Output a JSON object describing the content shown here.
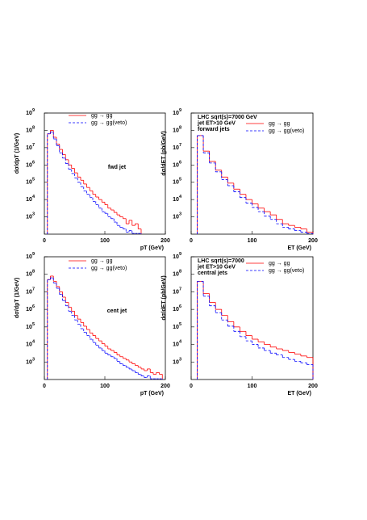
{
  "chart_data": [
    {
      "type": "histogram",
      "log_y": true,
      "grid": false,
      "x_label": "pT (GeV)",
      "y_label": "dσ/dpT (1/GeV)",
      "annotations": [
        "fwd jet"
      ],
      "xlim": [
        0,
        200
      ],
      "xticks": [
        0,
        100,
        200
      ],
      "ylim": [
        100,
        1000000000
      ],
      "yticks": [
        {
          "value": 1000,
          "label": "10",
          "exp": "3"
        },
        {
          "value": 10000,
          "label": "10",
          "exp": "4"
        },
        {
          "value": 100000,
          "label": "10",
          "exp": "5"
        },
        {
          "value": 1000000,
          "label": "10",
          "exp": "6"
        },
        {
          "value": 10000000,
          "label": "10",
          "exp": "7"
        },
        {
          "value": 100000000,
          "label": "10",
          "exp": "8"
        },
        {
          "value": 1000000000,
          "label": "10",
          "exp": "9"
        }
      ],
      "bins": [
        5,
        10,
        15,
        20,
        25,
        30,
        35,
        40,
        45,
        50,
        55,
        60,
        65,
        70,
        75,
        80,
        85,
        90,
        95,
        100,
        105,
        110,
        115,
        120,
        125,
        130,
        135,
        140,
        145,
        150,
        155,
        160
      ],
      "series": [
        {
          "name": "gg → gg",
          "color": "#ff0000",
          "line_style": "solid",
          "values": [
            63000000,
            100000000,
            40000000,
            16000000,
            7900000,
            4000000,
            2000000,
            1000000,
            630000,
            350000,
            200000,
            130000,
            79000,
            50000,
            32000,
            20000,
            14000,
            10000,
            7100,
            5000,
            3200,
            2500,
            1800,
            1300,
            1000,
            790,
            400,
            630,
            320,
            400,
            200
          ]
        },
        {
          "name": "gg → gg(veto)",
          "color": "#0000ff",
          "line_style": "dashed",
          "values": [
            63000000,
            79000000,
            32000000,
            13000000,
            5000000,
            2500000,
            1200000,
            560000,
            320000,
            180000,
            100000,
            56000,
            32000,
            20000,
            13000,
            7900,
            5000,
            3200,
            2000,
            1600,
            1000,
            790,
            500,
            320,
            250,
            200,
            130,
            160,
            110,
            110,
            110
          ]
        }
      ]
    },
    {
      "type": "histogram",
      "log_y": true,
      "grid": false,
      "x_label": "ET (GeV)",
      "y_label": "dσ/dET (pb/GeV)",
      "annotations": [
        "LHC sqrt(s)=7000 GeV",
        "jet  ET>10 GeV",
        "forward jets"
      ],
      "xlim": [
        0,
        200
      ],
      "xticks": [
        0,
        100,
        200
      ],
      "ylim": [
        100,
        1000000000
      ],
      "yticks": [
        {
          "value": 1000,
          "label": "10",
          "exp": "3"
        },
        {
          "value": 10000,
          "label": "10",
          "exp": "4"
        },
        {
          "value": 100000,
          "label": "10",
          "exp": "5"
        },
        {
          "value": 1000000,
          "label": "10",
          "exp": "6"
        },
        {
          "value": 10000000,
          "label": "10",
          "exp": "7"
        },
        {
          "value": 100000000,
          "label": "10",
          "exp": "8"
        },
        {
          "value": 1000000000,
          "label": "10",
          "exp": "9"
        }
      ],
      "bins": [
        10,
        20,
        30,
        40,
        50,
        60,
        70,
        80,
        90,
        100,
        110,
        120,
        130,
        140,
        150,
        160,
        170,
        180,
        190,
        200
      ],
      "series": [
        {
          "name": "gg → gg",
          "color": "#ff0000",
          "line_style": "solid",
          "values": [
            50000000,
            6300000,
            1600000,
            500000,
            200000,
            89000,
            40000,
            20000,
            10000,
            5600,
            3200,
            2000,
            1300,
            710,
            400,
            320,
            250,
            200,
            130
          ]
        },
        {
          "name": "gg → gg(veto)",
          "color": "#0000ff",
          "line_style": "dashed",
          "values": [
            50000000,
            5000000,
            1300000,
            400000,
            140000,
            63000,
            28000,
            13000,
            6300,
            3500,
            2000,
            1100,
            710,
            400,
            250,
            200,
            160,
            130,
            110
          ]
        }
      ]
    },
    {
      "type": "histogram",
      "log_y": true,
      "grid": false,
      "x_label": "pT (GeV)",
      "y_label": "dσ/dpT (1/GeV)",
      "annotations": [
        "cent jet"
      ],
      "xlim": [
        0,
        200
      ],
      "xticks": [
        0,
        100,
        200
      ],
      "ylim": [
        100,
        1000000000
      ],
      "yticks": [
        {
          "value": 1000,
          "label": "10",
          "exp": "3"
        },
        {
          "value": 10000,
          "label": "10",
          "exp": "4"
        },
        {
          "value": 100000,
          "label": "10",
          "exp": "5"
        },
        {
          "value": 1000000,
          "label": "10",
          "exp": "6"
        },
        {
          "value": 10000000,
          "label": "10",
          "exp": "7"
        },
        {
          "value": 100000000,
          "label": "10",
          "exp": "8"
        },
        {
          "value": 1000000000,
          "label": "10",
          "exp": "9"
        }
      ],
      "bins": [
        5,
        10,
        15,
        20,
        25,
        30,
        35,
        40,
        45,
        50,
        55,
        60,
        65,
        70,
        75,
        80,
        85,
        90,
        95,
        100,
        105,
        110,
        115,
        120,
        125,
        130,
        135,
        140,
        145,
        150,
        155,
        160,
        165,
        170,
        175,
        180,
        185,
        190,
        195
      ],
      "series": [
        {
          "name": "gg → gg",
          "color": "#ff0000",
          "line_style": "solid",
          "values": [
            50000000,
            79000000,
            40000000,
            20000000,
            10000000,
            5000000,
            2500000,
            1300000,
            790000,
            450000,
            280000,
            180000,
            110000,
            71000,
            45000,
            32000,
            22000,
            16000,
            11000,
            7900,
            5600,
            4500,
            3500,
            2500,
            2000,
            1600,
            1300,
            1000,
            790,
            630,
            500,
            400,
            320,
            400,
            250,
            200,
            250,
            200
          ]
        },
        {
          "name": "gg → gg(veto)",
          "color": "#0000ff",
          "line_style": "dashed",
          "values": [
            50000000,
            63000000,
            32000000,
            16000000,
            7100000,
            3200000,
            1600000,
            790000,
            450000,
            250000,
            140000,
            79000,
            50000,
            32000,
            20000,
            13000,
            8900,
            6300,
            4500,
            3200,
            2500,
            2000,
            1600,
            1100,
            790,
            630,
            500,
            400,
            320,
            250,
            200,
            160,
            130,
            160,
            110,
            110,
            110,
            110
          ]
        }
      ]
    },
    {
      "type": "histogram",
      "log_y": true,
      "grid": false,
      "x_label": "ET (GeV)",
      "y_label": "dσ/dET (pb/GeV)",
      "annotations": [
        "LHC sqrt(s)=7000",
        "jet  ET>10 GeV",
        "central jets"
      ],
      "xlim": [
        0,
        200
      ],
      "xticks": [
        0,
        100,
        200
      ],
      "ylim": [
        100,
        1000000000
      ],
      "yticks": [
        {
          "value": 1000,
          "label": "10",
          "exp": "3"
        },
        {
          "value": 10000,
          "label": "10",
          "exp": "4"
        },
        {
          "value": 100000,
          "label": "10",
          "exp": "5"
        },
        {
          "value": 1000000,
          "label": "10",
          "exp": "6"
        },
        {
          "value": 10000000,
          "label": "10",
          "exp": "7"
        },
        {
          "value": 100000000,
          "label": "10",
          "exp": "8"
        },
        {
          "value": 1000000000,
          "label": "10",
          "exp": "9"
        }
      ],
      "bins": [
        10,
        20,
        30,
        40,
        50,
        60,
        70,
        80,
        90,
        100,
        110,
        120,
        130,
        140,
        150,
        160,
        170,
        180,
        190,
        200
      ],
      "series": [
        {
          "name": "gg → gg",
          "color": "#ff0000",
          "line_style": "solid",
          "values": [
            40000000,
            7900000,
            2500000,
            1000000,
            450000,
            200000,
            100000,
            56000,
            32000,
            20000,
            14000,
            10000,
            7100,
            5600,
            4500,
            3500,
            2800,
            2200,
            1800
          ]
        },
        {
          "name": "gg → gg(veto)",
          "color": "#0000ff",
          "line_style": "dashed",
          "values": [
            40000000,
            5600000,
            1600000,
            630000,
            250000,
            110000,
            56000,
            28000,
            16000,
            10000,
            6300,
            4500,
            3200,
            2500,
            1800,
            1400,
            1100,
            890,
            710
          ]
        }
      ]
    }
  ]
}
